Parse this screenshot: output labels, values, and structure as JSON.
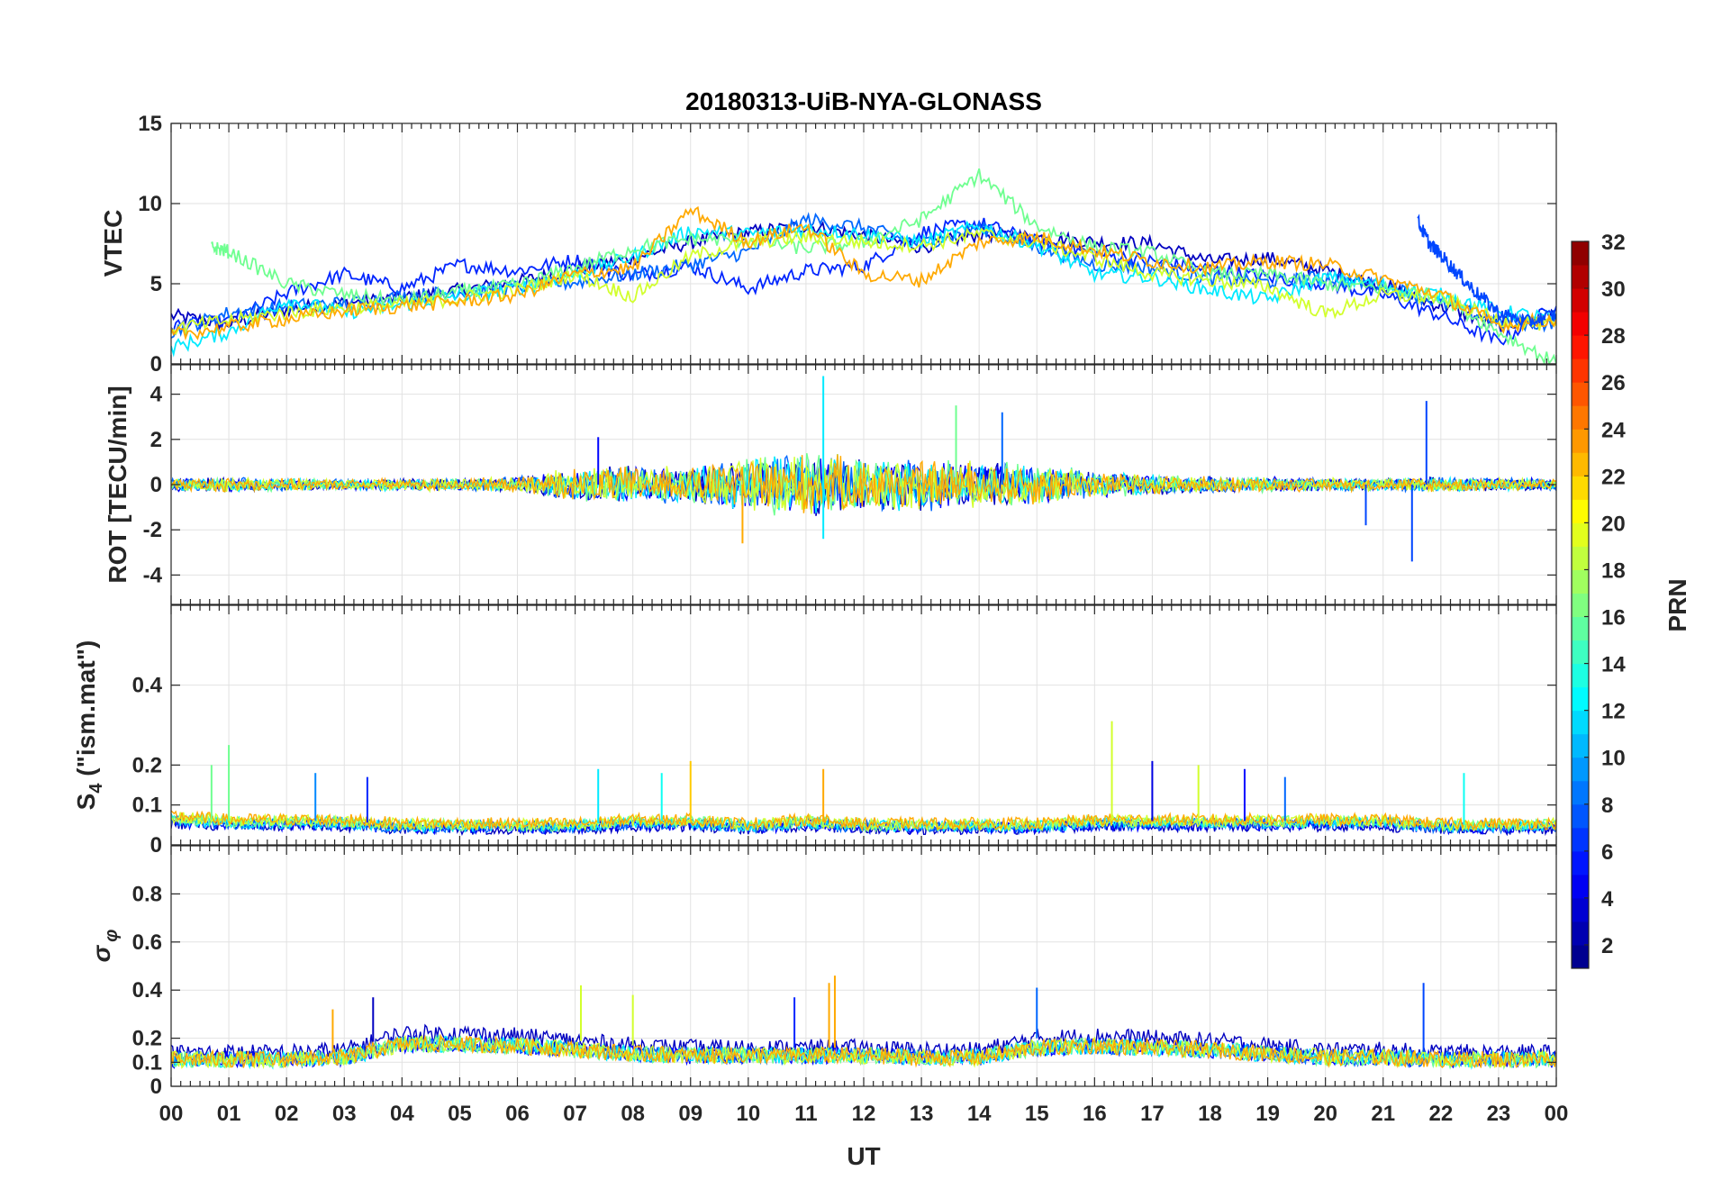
{
  "chart_data": {
    "type": "line",
    "title": "20180313-UiB-NYA-GLONASS",
    "xlabel": "UT",
    "x_ticks": [
      "00",
      "01",
      "02",
      "03",
      "04",
      "05",
      "06",
      "07",
      "08",
      "09",
      "10",
      "11",
      "12",
      "13",
      "14",
      "15",
      "16",
      "17",
      "18",
      "19",
      "20",
      "21",
      "22",
      "23",
      "00"
    ],
    "xlim_hours": [
      0,
      24
    ],
    "grid": true,
    "colorbar": {
      "label": "PRN",
      "range": [
        1,
        32
      ],
      "ticks": [
        "2",
        "4",
        "6",
        "8",
        "10",
        "12",
        "14",
        "16",
        "18",
        "20",
        "22",
        "24",
        "26",
        "28",
        "30",
        "32"
      ],
      "colormap": "jet",
      "placement": "right"
    },
    "panels": [
      {
        "name": "vtec",
        "ylabel": "VTEC",
        "ylim": [
          0,
          15
        ],
        "yticks": [
          "0",
          "5",
          "10",
          "15"
        ],
        "series": [
          {
            "prn": 3,
            "x": [
              0,
              1,
              2,
              3,
              4,
              5,
              6,
              7,
              8,
              9,
              10,
              11,
              12,
              13,
              14,
              15,
              16,
              17,
              18,
              19,
              20,
              21,
              22,
              23,
              24
            ],
            "y": [
              3,
              2.5,
              3.4,
              3.8,
              4.1,
              4.6,
              5.1,
              5.9,
              6.6,
              7.6,
              8.2,
              8.6,
              8.0,
              7.3,
              8.1,
              7.9,
              7.6,
              7.5,
              6.4,
              6.6,
              5.8,
              4.9,
              3.6,
              2.4,
              3.0
            ]
          },
          {
            "prn": 6,
            "x": [
              0,
              1,
              2,
              3,
              4,
              5,
              6,
              7,
              8,
              9,
              10,
              11,
              12,
              13,
              14,
              15,
              16,
              17,
              18,
              19,
              20,
              21,
              22,
              23,
              24
            ],
            "y": [
              2.4,
              2.6,
              4.4,
              5.6,
              4.7,
              6.2,
              5.8,
              6.5,
              5.5,
              6.1,
              4.7,
              5.8,
              6.1,
              8.2,
              8.8,
              7.6,
              6.9,
              6.4,
              5.9,
              5.4,
              5.0,
              4.3,
              3.0,
              1.4,
              3.6
            ]
          },
          {
            "prn": 8,
            "x": [
              0,
              1,
              2,
              3,
              4,
              5,
              6,
              7,
              8,
              9,
              10,
              11,
              12,
              13,
              14,
              15,
              16,
              17,
              18,
              19,
              20,
              21,
              22,
              23,
              24
            ],
            "y": [
              2.0,
              3.2,
              3.6,
              3.8,
              4.2,
              4.5,
              4.8,
              5.1,
              5.6,
              6.2,
              7.0,
              9.0,
              8.5,
              7.5,
              8.5,
              7.3,
              6.2,
              6.0,
              5.3,
              5.1,
              5.4,
              4.9,
              3.8,
              2.6,
              2.5
            ]
          },
          {
            "prn": 12,
            "x": [
              0,
              1,
              2,
              3,
              4,
              5,
              6,
              7,
              8,
              9,
              10,
              11,
              12,
              13,
              14,
              15,
              16,
              17,
              18,
              19,
              20,
              21,
              22,
              23,
              24
            ],
            "y": [
              1.0,
              2.0,
              4.0,
              3.2,
              3.7,
              4.3,
              4.7,
              5.6,
              6.7,
              8.3,
              8.1,
              8.4,
              8.1,
              7.6,
              8.6,
              7.4,
              5.6,
              5.4,
              4.6,
              4.0,
              5.4,
              4.9,
              4.3,
              3.3,
              2.8
            ]
          },
          {
            "prn": 16,
            "x": [
              0.7,
              1,
              2,
              3,
              4,
              5,
              6,
              7,
              8,
              9,
              10,
              11,
              12,
              13,
              14,
              15,
              16,
              17,
              18,
              19,
              20,
              21,
              22,
              23,
              24
            ],
            "y": [
              7.3,
              7.0,
              5.0,
              4.3,
              3.9,
              4.5,
              4.9,
              6.0,
              7.2,
              7.8,
              7.7,
              7.2,
              7.6,
              9.0,
              11.8,
              8.6,
              7.3,
              6.9,
              5.6,
              5.6,
              5.0,
              4.7,
              4.2,
              2.0,
              0
            ]
          },
          {
            "prn": 19,
            "x": [
              0,
              1,
              2,
              3,
              4,
              5,
              6,
              7,
              8,
              9,
              10,
              11,
              12,
              13,
              14,
              15,
              16,
              17,
              18,
              19,
              20,
              21,
              22,
              23,
              24
            ],
            "y": [
              2.2,
              2.7,
              3.2,
              3.5,
              3.7,
              4.1,
              4.6,
              5.6,
              4.2,
              6.7,
              7.6,
              7.9,
              7.6,
              7.4,
              8.1,
              7.6,
              6.6,
              5.6,
              5.2,
              4.8,
              3.1,
              4.3,
              4.1,
              2.7,
              2.4
            ]
          },
          {
            "prn": 23,
            "x": [
              0,
              1,
              2,
              3,
              4,
              5,
              6,
              7,
              8,
              9,
              10,
              11,
              12,
              13,
              14,
              15,
              16,
              17,
              18,
              19,
              20,
              21,
              22,
              23,
              24
            ],
            "y": [
              1.8,
              2.3,
              2.8,
              3.3,
              3.6,
              3.9,
              4.3,
              5.6,
              6.0,
              9.6,
              7.6,
              8.6,
              5.6,
              5.2,
              7.6,
              7.9,
              7.1,
              6.4,
              6.0,
              6.4,
              6.2,
              5.3,
              4.3,
              2.4,
              2.8
            ]
          },
          {
            "prn": 7,
            "x": [
              21.6,
              21.8,
              22.0,
              22.3,
              22.6,
              23.0,
              23.5,
              24
            ],
            "y": [
              8.9,
              7.5,
              6.8,
              5.6,
              4.5,
              3.2,
              2.6,
              3.1
            ]
          }
        ]
      },
      {
        "name": "rot",
        "ylabel": "ROT [TECU/min]",
        "ylim": [
          -5.3,
          5.3
        ],
        "yticks": [
          "-4",
          "-2",
          "0",
          "2",
          "4"
        ],
        "noise_envelope": {
          "x": [
            0,
            1,
            2,
            3,
            4,
            5,
            6,
            7,
            8,
            9,
            10,
            11,
            12,
            13,
            14,
            15,
            16,
            17,
            18,
            19,
            20,
            21,
            22,
            23,
            24
          ],
          "amplitude": [
            0.3,
            0.35,
            0.3,
            0.25,
            0.3,
            0.3,
            0.35,
            0.8,
            0.9,
            0.8,
            1.3,
            1.5,
            1.3,
            1.2,
            1.1,
            1.0,
            0.6,
            0.5,
            0.4,
            0.35,
            0.3,
            0.3,
            0.35,
            0.3,
            0.3
          ]
        },
        "spikes": [
          {
            "x": 11.3,
            "y": 4.8,
            "prn": 12
          },
          {
            "x": 11.3,
            "y": -2.4,
            "prn": 12
          },
          {
            "x": 9.9,
            "y": -2.6,
            "prn": 23
          },
          {
            "x": 21.75,
            "y": 3.7,
            "prn": 7
          },
          {
            "x": 21.5,
            "y": -3.4,
            "prn": 7
          },
          {
            "x": 14.4,
            "y": 3.2,
            "prn": 8
          },
          {
            "x": 13.6,
            "y": 3.5,
            "prn": 16
          },
          {
            "x": 7.4,
            "y": 2.1,
            "prn": 5
          },
          {
            "x": 20.7,
            "y": -1.8,
            "prn": 7
          }
        ]
      },
      {
        "name": "s4",
        "ylabel": "S4 (\"ism.mat\")",
        "ylabel_main": "S",
        "ylabel_sub": "4",
        "ylabel_rest": " (\"ism.mat\")",
        "ylim": [
          0,
          0.6
        ],
        "yticks": [
          "0",
          "0.1",
          "0.2",
          "0.4"
        ],
        "noise_envelope": {
          "x": [
            0,
            1,
            2,
            3,
            4,
            5,
            6,
            7,
            8,
            9,
            10,
            11,
            12,
            13,
            14,
            15,
            16,
            17,
            18,
            19,
            20,
            21,
            22,
            23,
            24
          ],
          "base": [
            0.07,
            0.06,
            0.06,
            0.06,
            0.05,
            0.05,
            0.05,
            0.05,
            0.06,
            0.06,
            0.05,
            0.06,
            0.05,
            0.05,
            0.05,
            0.05,
            0.06,
            0.06,
            0.06,
            0.06,
            0.06,
            0.06,
            0.05,
            0.05,
            0.05
          ]
        },
        "spikes": [
          {
            "x": 1.0,
            "y": 0.25,
            "prn": 16
          },
          {
            "x": 0.7,
            "y": 0.2,
            "prn": 16
          },
          {
            "x": 2.5,
            "y": 0.18,
            "prn": 9
          },
          {
            "x": 3.4,
            "y": 0.17,
            "prn": 6
          },
          {
            "x": 7.4,
            "y": 0.19,
            "prn": 12
          },
          {
            "x": 8.5,
            "y": 0.18,
            "prn": 13
          },
          {
            "x": 9.0,
            "y": 0.21,
            "prn": 22
          },
          {
            "x": 11.3,
            "y": 0.19,
            "prn": 23
          },
          {
            "x": 16.3,
            "y": 0.31,
            "prn": 19
          },
          {
            "x": 17.0,
            "y": 0.21,
            "prn": 4
          },
          {
            "x": 17.8,
            "y": 0.2,
            "prn": 19
          },
          {
            "x": 18.6,
            "y": 0.19,
            "prn": 5
          },
          {
            "x": 19.3,
            "y": 0.17,
            "prn": 8
          },
          {
            "x": 22.4,
            "y": 0.18,
            "prn": 13
          }
        ]
      },
      {
        "name": "sigma_phi",
        "ylabel": "σ φ",
        "ylabel_main": "σ",
        "ylabel_sub": "φ",
        "ylim": [
          0,
          1.0
        ],
        "yticks": [
          "0",
          "0.1",
          "0.2",
          "0.4",
          "0.6",
          "0.8"
        ],
        "noise_envelope": {
          "x": [
            0,
            1,
            2,
            3,
            4,
            5,
            6,
            7,
            8,
            9,
            10,
            11,
            12,
            13,
            14,
            15,
            16,
            17,
            18,
            19,
            20,
            21,
            22,
            23,
            24
          ],
          "base": [
            0.14,
            0.14,
            0.14,
            0.15,
            0.22,
            0.22,
            0.21,
            0.19,
            0.17,
            0.16,
            0.16,
            0.16,
            0.16,
            0.15,
            0.15,
            0.2,
            0.21,
            0.2,
            0.19,
            0.17,
            0.15,
            0.15,
            0.14,
            0.14,
            0.14
          ]
        },
        "spikes": [
          {
            "x": 7.1,
            "y": 0.42,
            "prn": 19
          },
          {
            "x": 11.5,
            "y": 0.46,
            "prn": 23
          },
          {
            "x": 11.4,
            "y": 0.43,
            "prn": 23
          },
          {
            "x": 10.8,
            "y": 0.37,
            "prn": 6
          },
          {
            "x": 15.0,
            "y": 0.41,
            "prn": 8
          },
          {
            "x": 21.7,
            "y": 0.43,
            "prn": 7
          },
          {
            "x": 3.5,
            "y": 0.37,
            "prn": 3
          },
          {
            "x": 2.8,
            "y": 0.32,
            "prn": 23
          },
          {
            "x": 8.0,
            "y": 0.38,
            "prn": 19
          }
        ]
      }
    ]
  }
}
